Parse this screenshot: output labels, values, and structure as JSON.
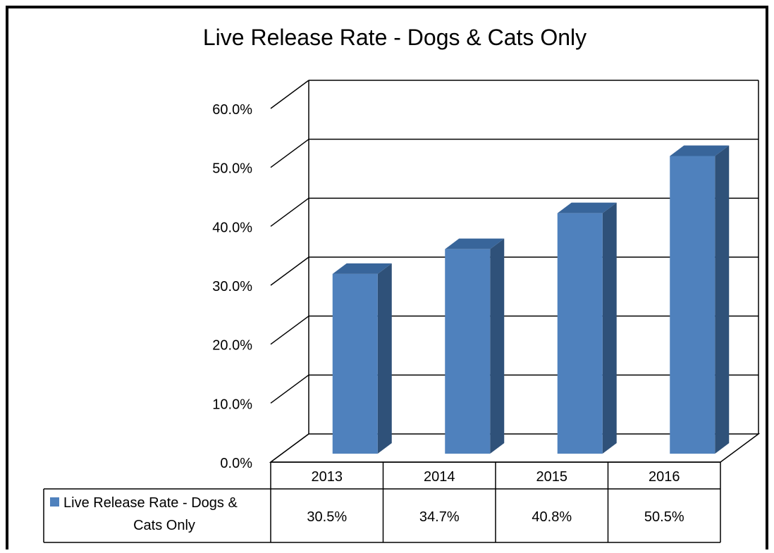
{
  "chart_data": {
    "type": "bar",
    "title": "Live Release Rate - Dogs & Cats Only",
    "categories": [
      "2013",
      "2014",
      "2015",
      "2016"
    ],
    "series": [
      {
        "name": "Live Release Rate - Dogs & Cats Only",
        "values": [
          30.5,
          34.7,
          40.8,
          50.5
        ],
        "value_labels": [
          "30.5%",
          "34.7%",
          "40.8%",
          "50.5%"
        ],
        "color": "#4f81bd"
      }
    ],
    "ylim": [
      0,
      60
    ],
    "y_ticks": [
      0,
      10,
      20,
      30,
      40,
      50,
      60
    ],
    "y_tick_labels": [
      "0.0%",
      "10.0%",
      "20.0%",
      "30.0%",
      "40.0%",
      "50.0%",
      "60.0%"
    ],
    "grid": true,
    "legend": "data-table",
    "colors": {
      "bar_front": "#4f81bd",
      "bar_side": "#2f5179",
      "bar_top": "#38659a",
      "gridline": "#000000",
      "frame": "#000000"
    }
  }
}
